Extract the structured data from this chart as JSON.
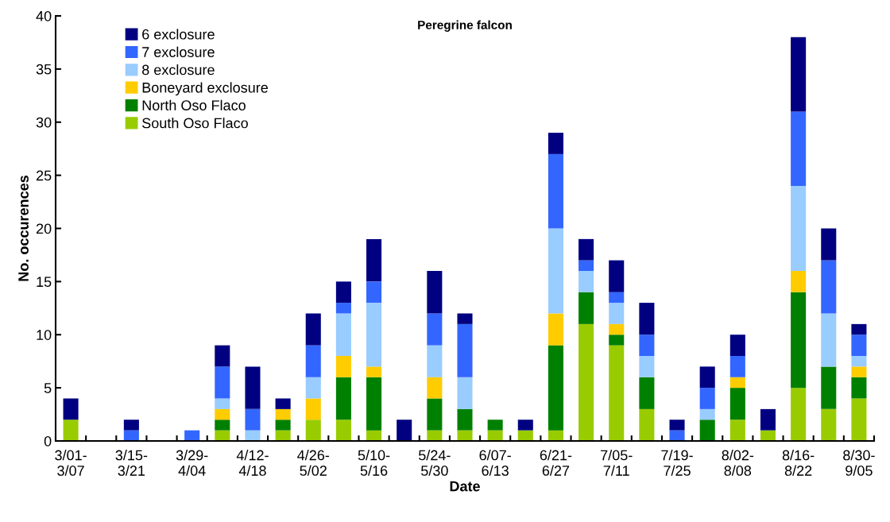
{
  "chart_data": {
    "type": "bar",
    "stacked": true,
    "title": "Peregrine falcon",
    "xlabel": "Date",
    "ylabel": "No. occurences",
    "categories": [
      "3/01-\n3/07",
      null,
      "3/15-\n3/21",
      null,
      "3/29-\n4/04",
      null,
      "4/12-\n4/18",
      null,
      "4/26-\n5/02",
      null,
      "5/10-\n5/16",
      null,
      "5/24-\n5/30",
      null,
      "6/07-\n6/13",
      null,
      "6/21-\n6/27",
      null,
      "7/05-\n7/11",
      null,
      "7/19-\n7/25",
      null,
      "8/02-\n8/08",
      null,
      "8/16-\n8/22",
      null,
      "8/30-\n9/05"
    ],
    "series": [
      {
        "name": "South Oso Flaco",
        "color": "#99cc00",
        "values": [
          2,
          0,
          0,
          0,
          0,
          1,
          0,
          1,
          2,
          2,
          1,
          0,
          1,
          1,
          1,
          1,
          1,
          11,
          9,
          3,
          0,
          0,
          2,
          1,
          5,
          3,
          4
        ]
      },
      {
        "name": "North Oso Flaco",
        "color": "#008000",
        "values": [
          0,
          0,
          0,
          0,
          0,
          1,
          0,
          1,
          0,
          4,
          5,
          0,
          3,
          2,
          1,
          0,
          8,
          3,
          1,
          3,
          0,
          2,
          3,
          0,
          9,
          4,
          2
        ]
      },
      {
        "name": "Boneyard exclosure",
        "color": "#ffcc00",
        "values": [
          0,
          0,
          0,
          0,
          0,
          1,
          0,
          1,
          2,
          2,
          1,
          0,
          2,
          0,
          0,
          0,
          3,
          0,
          1,
          0,
          0,
          0,
          1,
          0,
          2,
          0,
          1
        ]
      },
      {
        "name": "8 exclosure",
        "color": "#99ccff",
        "values": [
          0,
          0,
          0,
          0,
          0,
          1,
          1,
          0,
          2,
          4,
          6,
          0,
          3,
          3,
          0,
          0,
          8,
          2,
          2,
          2,
          0,
          1,
          0,
          0,
          8,
          5,
          1
        ]
      },
      {
        "name": "7 exclosure",
        "color": "#3366ff",
        "values": [
          0,
          0,
          1,
          0,
          1,
          3,
          2,
          0,
          3,
          1,
          2,
          0,
          3,
          5,
          0,
          0,
          7,
          1,
          1,
          2,
          1,
          2,
          2,
          0,
          7,
          5,
          2
        ]
      },
      {
        "name": "6 exclosure",
        "color": "#000080",
        "values": [
          2,
          0,
          1,
          0,
          0,
          2,
          4,
          1,
          3,
          2,
          4,
          2,
          4,
          1,
          0,
          1,
          2,
          2,
          3,
          3,
          1,
          2,
          2,
          2,
          7,
          3,
          1
        ]
      }
    ],
    "ylim": [
      0,
      40
    ],
    "yticks": [
      0,
      5,
      10,
      15,
      20,
      25,
      30,
      35,
      40
    ],
    "grid": false,
    "legend": "top left"
  }
}
